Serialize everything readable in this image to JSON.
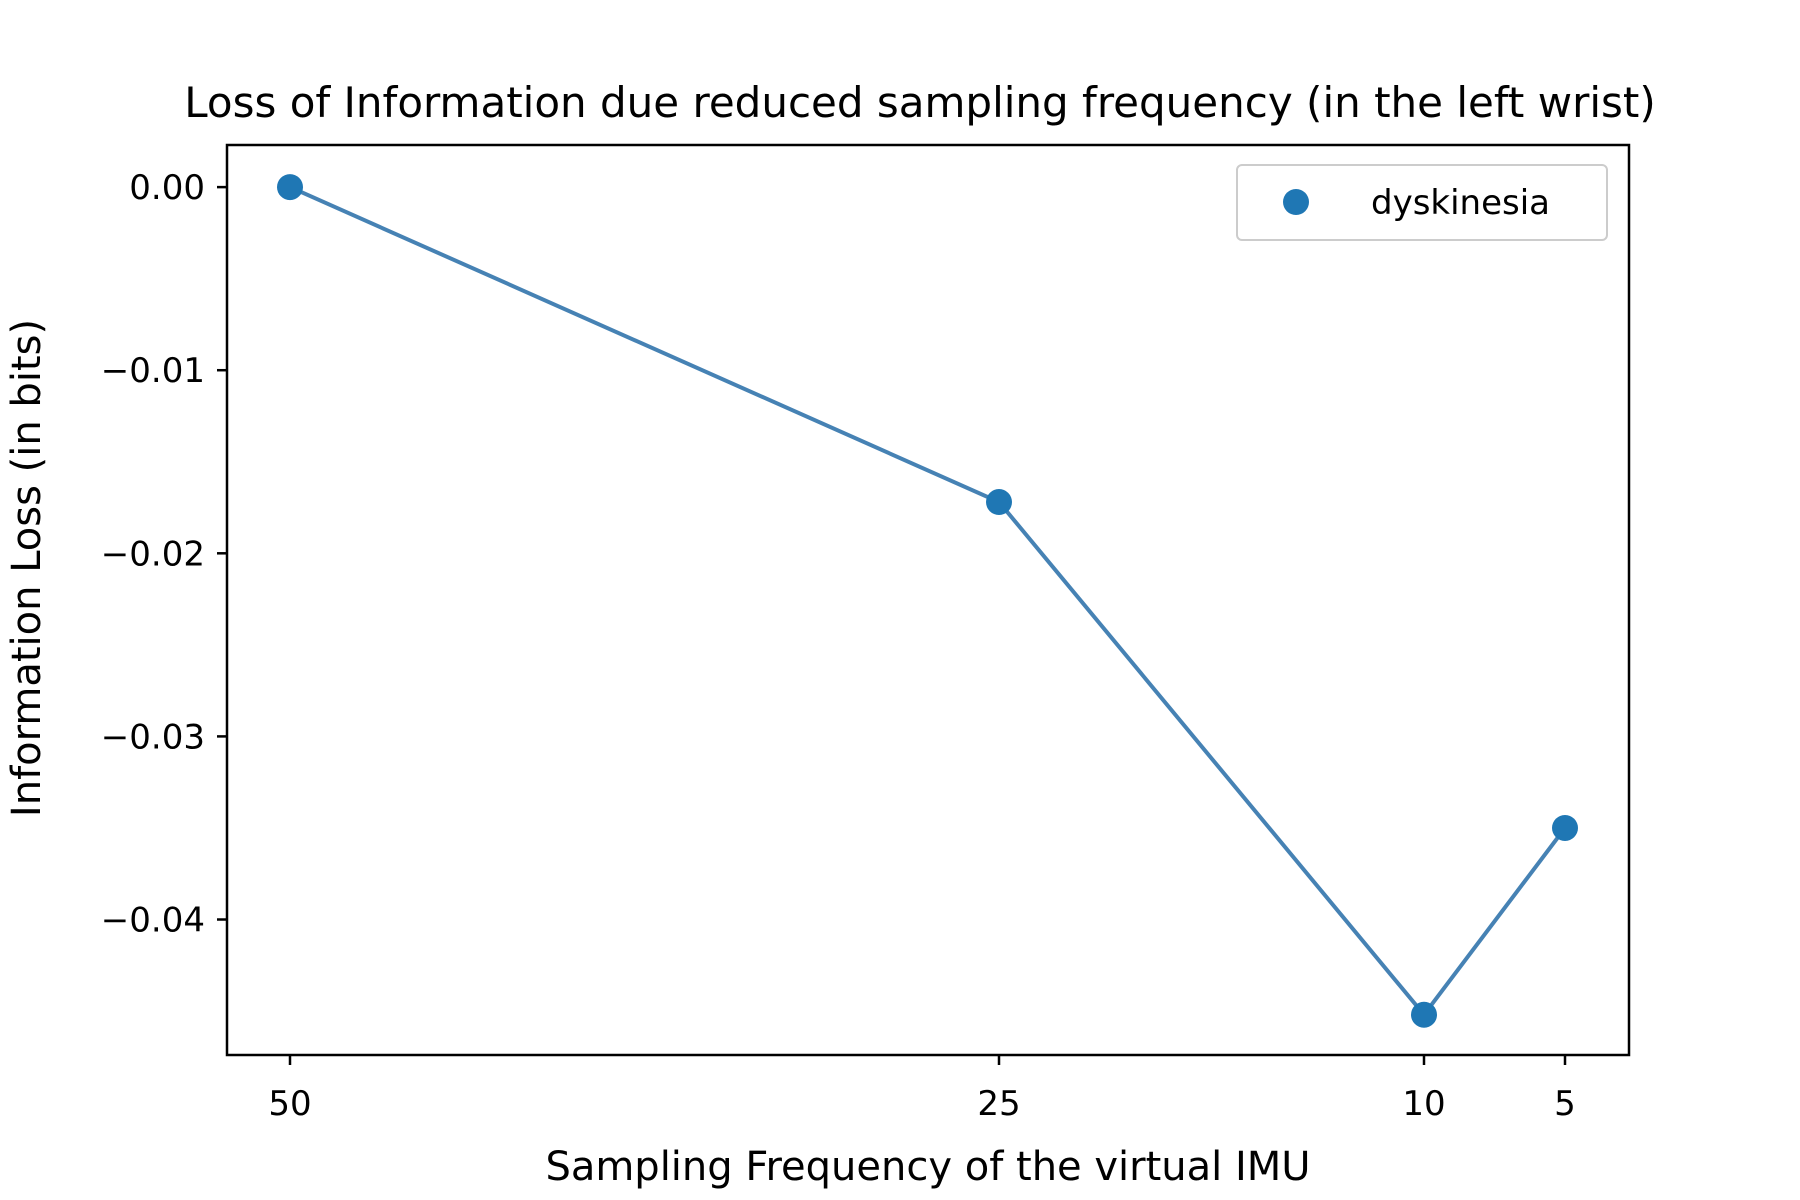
{
  "chart_data": {
    "type": "line",
    "title": "Loss of Information due reduced sampling frequency (in the left wrist)",
    "xlabel": "Sampling Frequency of the virtual IMU",
    "ylabel": "Information Loss (in bits)",
    "x_tick_labels": [
      "50",
      "25",
      "10",
      "5"
    ],
    "y_ticks": [
      0.0,
      -0.01,
      -0.02,
      -0.03,
      -0.04
    ],
    "y_tick_labels": [
      "0.00",
      "−0.01",
      "−0.02",
      "−0.03",
      "−0.04"
    ],
    "ylim": [
      -0.0474,
      0.0023
    ],
    "series": [
      {
        "name": "dyskinesia",
        "x": [
          50,
          25,
          10,
          5
        ],
        "values": [
          0.0,
          -0.0172,
          -0.0452,
          -0.035
        ],
        "line_color": "#4682b4",
        "marker_color": "#1f77b4"
      }
    ],
    "legend_position": "upper right",
    "grid": false
  }
}
